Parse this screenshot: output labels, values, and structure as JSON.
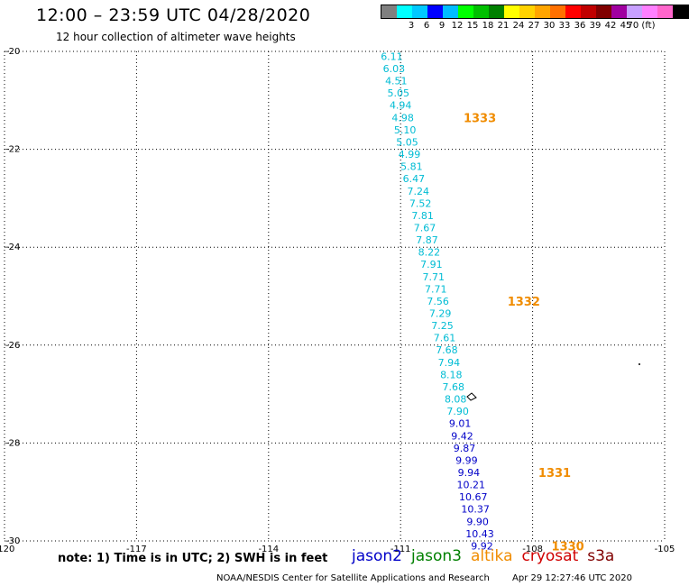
{
  "header": {
    "title": "12:00 – 23:59 UTC 04/28/2020",
    "subtitle": "12 hour collection of altimeter wave heights"
  },
  "legend": {
    "colors": [
      "#808080",
      "#00ffff",
      "#00c8ff",
      "#0000ff",
      "#00bcff",
      "#00ff00",
      "#00c000",
      "#008000",
      "#ffff00",
      "#ffd200",
      "#ffa500",
      "#ff7000",
      "#ff0000",
      "#c00000",
      "#800000",
      "#a000a0",
      "#c8a0ff",
      "#ff80ff",
      "#ff66cc",
      "#000000"
    ],
    "labels": [
      "3",
      "6",
      "9",
      "12",
      "15",
      "18",
      "21",
      "24",
      "27",
      "30",
      "33",
      "36",
      "39",
      "42",
      "45",
      "70 (ft)"
    ],
    "label_positions": [
      3,
      4,
      5,
      6,
      7,
      8,
      9,
      10,
      11,
      12,
      13,
      14,
      15,
      16,
      17,
      18
    ]
  },
  "map": {
    "x_ticks": [
      "-120",
      "-117",
      "-114",
      "-111",
      "-108",
      "-105"
    ],
    "y_ticks": [
      "-20",
      "-22",
      "-24",
      "-26",
      "-28",
      "-30"
    ]
  },
  "chart_data": {
    "type": "scatter",
    "xlim": [
      -120,
      -105
    ],
    "ylim": [
      -30,
      -20
    ],
    "xlabel": "",
    "ylabel": "",
    "grid": true,
    "series": [
      {
        "name": "jason2",
        "color_note": "values colored by wave-height scale",
        "points": [
          {
            "lon": -111.2,
            "lat": -20.1,
            "value": "6.11",
            "color": "#00bcd4"
          },
          {
            "lon": -111.15,
            "lat": -20.35,
            "value": "6.03",
            "color": "#00bcd4"
          },
          {
            "lon": -111.1,
            "lat": -20.6,
            "value": "4.51",
            "color": "#00bcd4"
          },
          {
            "lon": -111.05,
            "lat": -20.85,
            "value": "5.05",
            "color": "#00bcd4"
          },
          {
            "lon": -111.0,
            "lat": -21.1,
            "value": "4.94",
            "color": "#00bcd4"
          },
          {
            "lon": -110.95,
            "lat": -21.35,
            "value": "4.98",
            "color": "#00bcd4"
          },
          {
            "lon": -110.9,
            "lat": -21.6,
            "value": "5.10",
            "color": "#00bcd4"
          },
          {
            "lon": -110.85,
            "lat": -21.85,
            "value": "5.05",
            "color": "#00bcd4"
          },
          {
            "lon": -110.8,
            "lat": -22.1,
            "value": "4.99",
            "color": "#00bcd4"
          },
          {
            "lon": -110.75,
            "lat": -22.35,
            "value": "5.81",
            "color": "#00bcd4"
          },
          {
            "lon": -110.7,
            "lat": -22.6,
            "value": "6.47",
            "color": "#00bcd4"
          },
          {
            "lon": -110.6,
            "lat": -22.85,
            "value": "7.24",
            "color": "#00bcd4"
          },
          {
            "lon": -110.55,
            "lat": -23.1,
            "value": "7.52",
            "color": "#00bcd4"
          },
          {
            "lon": -110.5,
            "lat": -23.35,
            "value": "7.81",
            "color": "#00bcd4"
          },
          {
            "lon": -110.45,
            "lat": -23.6,
            "value": "7.67",
            "color": "#00bcd4"
          },
          {
            "lon": -110.4,
            "lat": -23.85,
            "value": "7.87",
            "color": "#00bcd4"
          },
          {
            "lon": -110.35,
            "lat": -24.1,
            "value": "8.22",
            "color": "#00bcd4"
          },
          {
            "lon": -110.3,
            "lat": -24.35,
            "value": "7.91",
            "color": "#00bcd4"
          },
          {
            "lon": -110.25,
            "lat": -24.6,
            "value": "7.71",
            "color": "#00bcd4"
          },
          {
            "lon": -110.2,
            "lat": -24.85,
            "value": "7.71",
            "color": "#00bcd4"
          },
          {
            "lon": -110.15,
            "lat": -25.1,
            "value": "7.56",
            "color": "#00bcd4"
          },
          {
            "lon": -110.1,
            "lat": -25.35,
            "value": "7.29",
            "color": "#00bcd4"
          },
          {
            "lon": -110.05,
            "lat": -25.6,
            "value": "7.25",
            "color": "#00bcd4"
          },
          {
            "lon": -110.0,
            "lat": -25.85,
            "value": "7.61",
            "color": "#00bcd4"
          },
          {
            "lon": -109.95,
            "lat": -26.1,
            "value": "7.68",
            "color": "#00bcd4"
          },
          {
            "lon": -109.9,
            "lat": -26.35,
            "value": "7.94",
            "color": "#00bcd4"
          },
          {
            "lon": -109.85,
            "lat": -26.6,
            "value": "8.18",
            "color": "#00bcd4"
          },
          {
            "lon": -109.8,
            "lat": -26.85,
            "value": "7.68",
            "color": "#00bcd4"
          },
          {
            "lon": -109.75,
            "lat": -27.1,
            "value": "8.08",
            "color": "#00bcd4"
          },
          {
            "lon": -109.7,
            "lat": -27.35,
            "value": "7.90",
            "color": "#00bcd4"
          },
          {
            "lon": -109.65,
            "lat": -27.6,
            "value": "9.01",
            "color": "#0000c8"
          },
          {
            "lon": -109.6,
            "lat": -27.85,
            "value": "9.42",
            "color": "#0000c8"
          },
          {
            "lon": -109.55,
            "lat": -28.1,
            "value": "9.87",
            "color": "#0000c8"
          },
          {
            "lon": -109.5,
            "lat": -28.35,
            "value": "9.99",
            "color": "#0000c8"
          },
          {
            "lon": -109.45,
            "lat": -28.6,
            "value": "9.94",
            "color": "#0000c8"
          },
          {
            "lon": -109.4,
            "lat": -28.85,
            "value": "10.21",
            "color": "#0000c8"
          },
          {
            "lon": -109.35,
            "lat": -29.1,
            "value": "10.67",
            "color": "#0000c8"
          },
          {
            "lon": -109.3,
            "lat": -29.35,
            "value": "10.37",
            "color": "#0000c8"
          },
          {
            "lon": -109.25,
            "lat": -29.6,
            "value": "9.90",
            "color": "#0000c8"
          },
          {
            "lon": -109.2,
            "lat": -29.85,
            "value": "10.43",
            "color": "#0000c8"
          },
          {
            "lon": -109.15,
            "lat": -30.1,
            "value": "9.92",
            "color": "#0000c8"
          }
        ]
      }
    ],
    "pass_labels": [
      {
        "text": "1333",
        "lon": -109.2,
        "lat": -21.35
      },
      {
        "text": "1332",
        "lon": -108.2,
        "lat": -25.1
      },
      {
        "text": "1331",
        "lon": -107.5,
        "lat": -28.6
      },
      {
        "text": "1330",
        "lon": -107.2,
        "lat": -30.1
      }
    ]
  },
  "note": "note: 1) Time is in UTC; 2) SWH is in feet",
  "satellites": [
    {
      "name": "jason2",
      "color": "#0000c8"
    },
    {
      "name": "jason3",
      "color": "#008000"
    },
    {
      "name": "altika",
      "color": "#f08c00"
    },
    {
      "name": "cryosat",
      "color": "#d00000"
    },
    {
      "name": "s3a",
      "color": "#800000"
    }
  ],
  "footer": {
    "credit": "NOAA/NESDIS Center for Satellite Applications and Research",
    "timestamp": "Apr 29 12:27:46 UTC 2020"
  }
}
